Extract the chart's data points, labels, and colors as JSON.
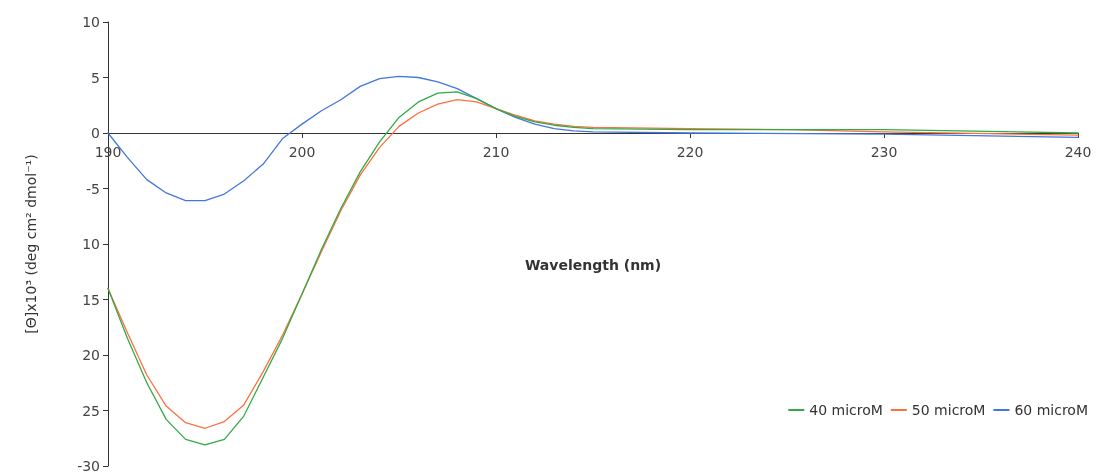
{
  "chart_data": {
    "type": "line",
    "xlabel": "Wavelength (nm)",
    "ylabel": "[Θ]x10³ (deg cm² dmol⁻¹)",
    "xlim": [
      190,
      240
    ],
    "xticks": [
      190,
      200,
      210,
      220,
      230,
      240
    ],
    "ylim": [
      -30,
      10
    ],
    "yticks": [
      10,
      5,
      0,
      -5,
      {
        "value": -10,
        "label": "10"
      },
      {
        "value": -15,
        "label": "15"
      },
      {
        "value": -20,
        "label": "20"
      },
      {
        "value": -25,
        "label": "25"
      },
      -30
    ],
    "grid": false,
    "legend": "bottom right",
    "marker": "none",
    "line_style": "solid",
    "series": [
      {
        "name": "40 microM",
        "color": "#33aa44",
        "x": [
          190,
          191,
          192,
          193,
          194,
          195,
          196,
          197,
          198,
          199,
          200,
          201,
          202,
          203,
          204,
          205,
          206,
          207,
          208,
          209,
          210,
          211,
          212,
          213,
          214,
          215,
          220,
          225,
          230,
          240
        ],
        "values": [
          -14,
          -18.5,
          -22.5,
          -25.8,
          -27.6,
          -28.1,
          -27.6,
          -25.5,
          -22,
          -18.5,
          -14.5,
          -10.5,
          -6.8,
          -3.5,
          -0.8,
          1.4,
          2.8,
          3.6,
          3.7,
          3.1,
          2.2,
          1.5,
          1.0,
          0.7,
          0.5,
          0.4,
          0.3,
          0.3,
          0.3,
          0
        ]
      },
      {
        "name": "50 microM",
        "color": "#ff6f40",
        "x": [
          190,
          191,
          192,
          193,
          194,
          195,
          196,
          197,
          198,
          199,
          200,
          201,
          202,
          203,
          204,
          205,
          206,
          207,
          208,
          209,
          210,
          211,
          212,
          213,
          214,
          215,
          220,
          225,
          230,
          240
        ],
        "values": [
          -14,
          -18,
          -21.8,
          -24.6,
          -26.1,
          -26.6,
          -26,
          -24.5,
          -21.5,
          -18.2,
          -14.5,
          -10.7,
          -7,
          -3.8,
          -1.3,
          0.6,
          1.8,
          2.6,
          3.0,
          2.8,
          2.2,
          1.6,
          1.1,
          0.8,
          0.6,
          0.5,
          0.4,
          0.3,
          0.1,
          -0.2
        ]
      },
      {
        "name": "60 microM",
        "color": "#4477dd",
        "x": [
          190,
          191,
          192,
          193,
          194,
          195,
          196,
          197,
          198,
          199,
          200,
          201,
          202,
          203,
          204,
          205,
          206,
          207,
          208,
          209,
          210,
          211,
          212,
          213,
          214,
          215,
          220,
          230,
          240
        ],
        "values": [
          0,
          -2.2,
          -4.2,
          -5.4,
          -6.1,
          -6.1,
          -5.5,
          -4.3,
          -2.8,
          -0.5,
          0.8,
          2.0,
          3.0,
          4.2,
          4.9,
          5.1,
          5.0,
          4.6,
          4.0,
          3.1,
          2.2,
          1.4,
          0.8,
          0.4,
          0.2,
          0.1,
          0,
          -0.1,
          -0.4
        ]
      }
    ]
  }
}
